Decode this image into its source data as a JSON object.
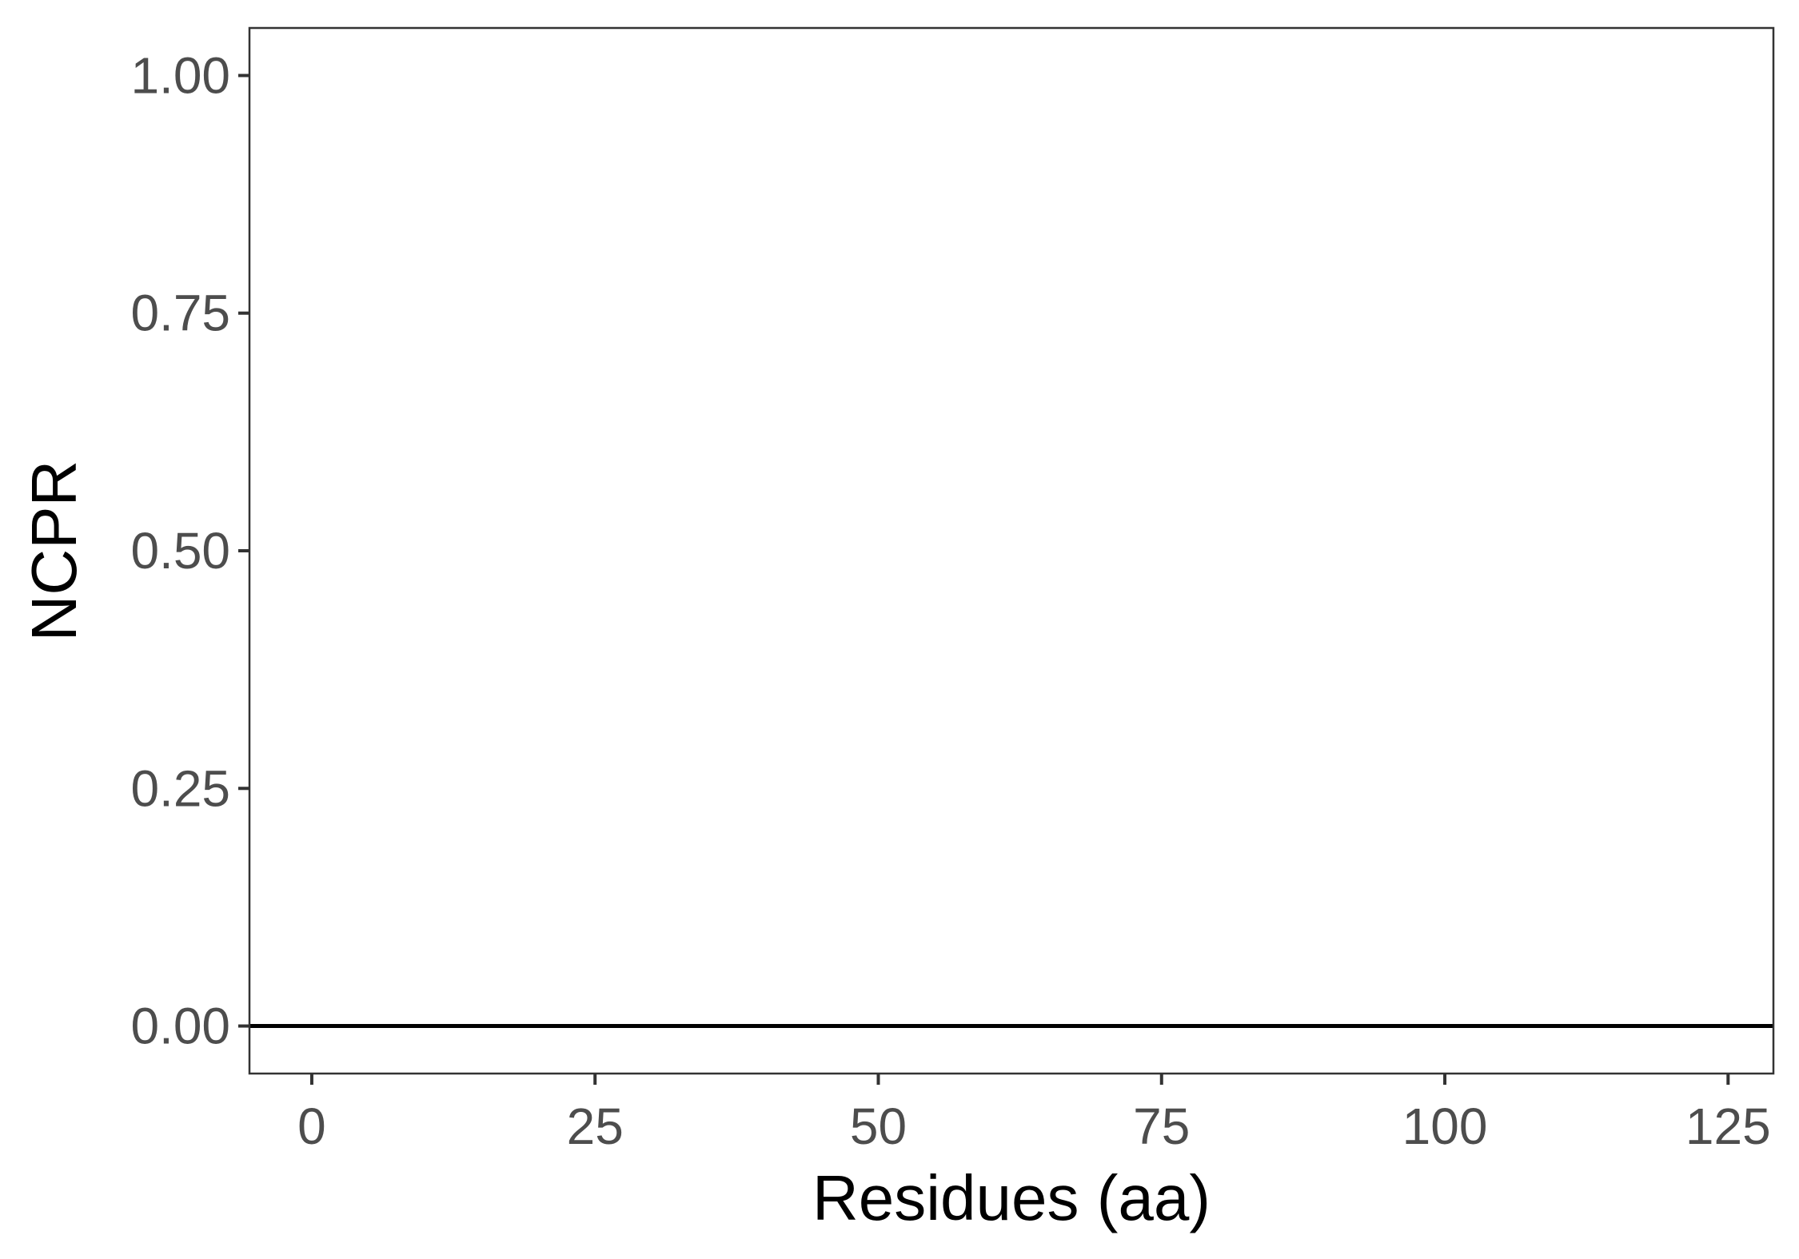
{
  "chart_data": {
    "type": "line",
    "title": "",
    "xlabel": "Residues (aa)",
    "ylabel": "NCPR",
    "xlim": [
      -5.5,
      129
    ],
    "ylim": [
      -0.05,
      1.05
    ],
    "x_ticks": [
      0,
      25,
      50,
      75,
      100,
      125
    ],
    "x_tick_labels": [
      "0",
      "25",
      "50",
      "75",
      "100",
      "125"
    ],
    "y_ticks": [
      0,
      0.25,
      0.5,
      0.75,
      1
    ],
    "y_tick_labels": [
      "0.00",
      "0.25",
      "0.50",
      "0.75",
      "1.00"
    ],
    "grid": false,
    "legend": "none",
    "series": [
      {
        "x": [
          -5.5,
          129
        ],
        "y": [
          0,
          0
        ],
        "color": "#000000"
      }
    ],
    "colors": {
      "panel_border": "#333333",
      "tick": "#333333",
      "tick_label": "#4d4d4d",
      "axis_title": "#000000",
      "line": "#000000"
    }
  }
}
